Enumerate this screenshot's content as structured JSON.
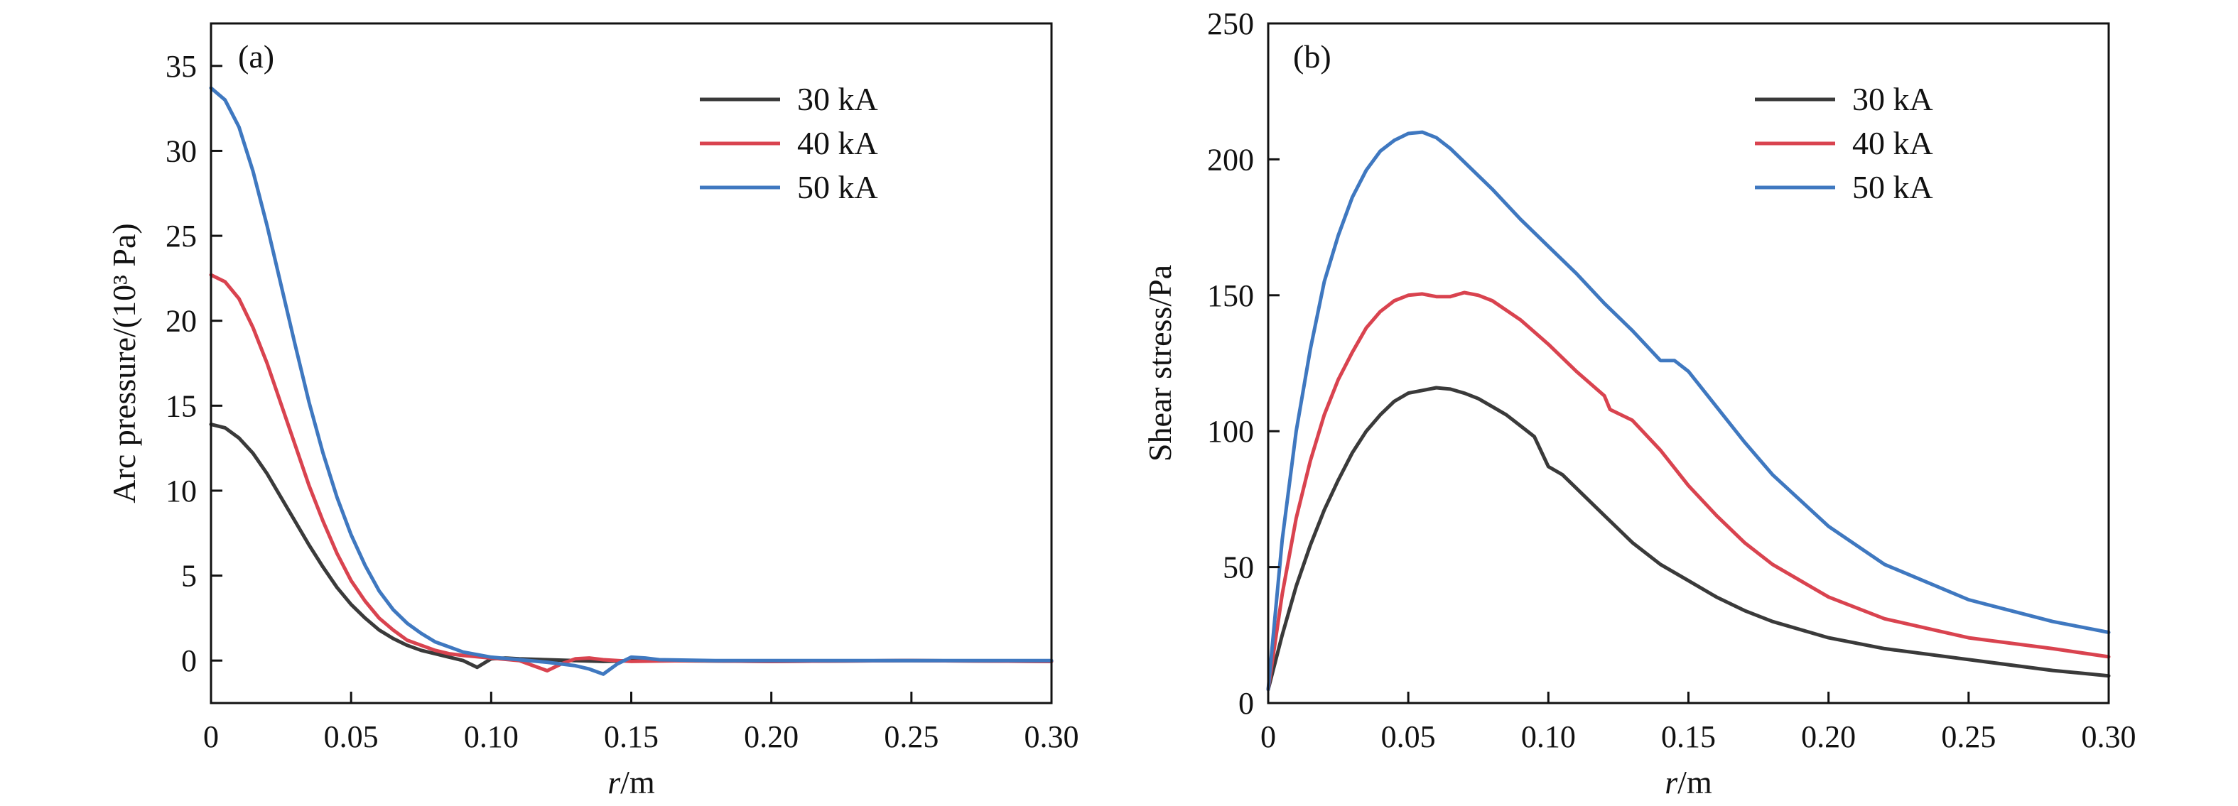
{
  "chart_data": [
    {
      "type": "line",
      "panel_label": "(a)",
      "xlabel_var": "r",
      "xlabel_unit": "/m",
      "ylabel": "Arc pressure/(10³ Pa)",
      "xlim": [
        0,
        0.3
      ],
      "ylim": [
        -2.5,
        37.5
      ],
      "xticks": [
        0,
        0.05,
        0.1,
        0.15,
        0.2,
        0.25,
        0.3
      ],
      "xtick_labels": [
        "0",
        "0.05",
        "0.10",
        "0.15",
        "0.20",
        "0.25",
        "0.30"
      ],
      "yticks": [
        0,
        5,
        10,
        15,
        20,
        25,
        30,
        35
      ],
      "ytick_labels": [
        "0",
        "5",
        "10",
        "15",
        "20",
        "25",
        "30",
        "35"
      ],
      "grid": false,
      "legend_position": "top-right",
      "series": [
        {
          "name": "30 kA",
          "color": "#3a3a3a",
          "points": [
            [
              0,
              13.9
            ],
            [
              0.005,
              13.7
            ],
            [
              0.01,
              13.1
            ],
            [
              0.015,
              12.2
            ],
            [
              0.02,
              11.0
            ],
            [
              0.025,
              9.6
            ],
            [
              0.03,
              8.2
            ],
            [
              0.035,
              6.8
            ],
            [
              0.04,
              5.5
            ],
            [
              0.045,
              4.3
            ],
            [
              0.05,
              3.3
            ],
            [
              0.055,
              2.5
            ],
            [
              0.06,
              1.8
            ],
            [
              0.065,
              1.3
            ],
            [
              0.07,
              0.9
            ],
            [
              0.075,
              0.6
            ],
            [
              0.08,
              0.4
            ],
            [
              0.085,
              0.2
            ],
            [
              0.09,
              0.0
            ],
            [
              0.095,
              -0.4
            ],
            [
              0.1,
              0.1
            ],
            [
              0.105,
              0.15
            ],
            [
              0.11,
              0.1
            ],
            [
              0.12,
              0.05
            ],
            [
              0.13,
              0.0
            ],
            [
              0.14,
              -0.05
            ],
            [
              0.15,
              0.0
            ],
            [
              0.16,
              0.0
            ],
            [
              0.2,
              -0.05
            ],
            [
              0.25,
              0.0
            ],
            [
              0.3,
              -0.05
            ]
          ]
        },
        {
          "name": "40 kA",
          "color": "#d9434f",
          "points": [
            [
              0,
              22.7
            ],
            [
              0.005,
              22.3
            ],
            [
              0.01,
              21.3
            ],
            [
              0.015,
              19.6
            ],
            [
              0.02,
              17.5
            ],
            [
              0.025,
              15.1
            ],
            [
              0.03,
              12.7
            ],
            [
              0.035,
              10.3
            ],
            [
              0.04,
              8.2
            ],
            [
              0.045,
              6.3
            ],
            [
              0.05,
              4.7
            ],
            [
              0.055,
              3.5
            ],
            [
              0.06,
              2.5
            ],
            [
              0.065,
              1.8
            ],
            [
              0.07,
              1.2
            ],
            [
              0.075,
              0.9
            ],
            [
              0.08,
              0.6
            ],
            [
              0.085,
              0.4
            ],
            [
              0.09,
              0.3
            ],
            [
              0.1,
              0.15
            ],
            [
              0.11,
              0.0
            ],
            [
              0.115,
              -0.3
            ],
            [
              0.12,
              -0.6
            ],
            [
              0.125,
              -0.2
            ],
            [
              0.13,
              0.1
            ],
            [
              0.135,
              0.15
            ],
            [
              0.14,
              0.05
            ],
            [
              0.15,
              -0.05
            ],
            [
              0.17,
              0.0
            ],
            [
              0.2,
              -0.05
            ],
            [
              0.25,
              0.0
            ],
            [
              0.3,
              -0.05
            ]
          ]
        },
        {
          "name": "50 kA",
          "color": "#3f78c0",
          "points": [
            [
              0,
              33.7
            ],
            [
              0.005,
              33.0
            ],
            [
              0.01,
              31.4
            ],
            [
              0.015,
              28.8
            ],
            [
              0.02,
              25.6
            ],
            [
              0.025,
              22.1
            ],
            [
              0.03,
              18.6
            ],
            [
              0.035,
              15.2
            ],
            [
              0.04,
              12.2
            ],
            [
              0.045,
              9.6
            ],
            [
              0.05,
              7.4
            ],
            [
              0.055,
              5.6
            ],
            [
              0.06,
              4.1
            ],
            [
              0.065,
              3.0
            ],
            [
              0.07,
              2.2
            ],
            [
              0.075,
              1.6
            ],
            [
              0.08,
              1.1
            ],
            [
              0.085,
              0.8
            ],
            [
              0.09,
              0.5
            ],
            [
              0.1,
              0.2
            ],
            [
              0.11,
              0.05
            ],
            [
              0.12,
              -0.1
            ],
            [
              0.13,
              -0.3
            ],
            [
              0.135,
              -0.5
            ],
            [
              0.14,
              -0.8
            ],
            [
              0.145,
              -0.2
            ],
            [
              0.15,
              0.2
            ],
            [
              0.155,
              0.15
            ],
            [
              0.16,
              0.05
            ],
            [
              0.18,
              0.0
            ],
            [
              0.2,
              0.0
            ],
            [
              0.25,
              0.0
            ],
            [
              0.3,
              0.0
            ]
          ]
        }
      ]
    },
    {
      "type": "line",
      "panel_label": "(b)",
      "xlabel_var": "r",
      "xlabel_unit": "/m",
      "ylabel": "Shear stress/Pa",
      "xlim": [
        0,
        0.3
      ],
      "ylim": [
        0,
        250
      ],
      "xticks": [
        0,
        0.05,
        0.1,
        0.15,
        0.2,
        0.25,
        0.3
      ],
      "xtick_labels": [
        "0",
        "0.05",
        "0.10",
        "0.15",
        "0.20",
        "0.25",
        "0.30"
      ],
      "yticks": [
        0,
        50,
        100,
        150,
        200,
        250
      ],
      "ytick_labels": [
        "0",
        "50",
        "100",
        "150",
        "200",
        "250"
      ],
      "grid": false,
      "legend_position": "top-right",
      "series": [
        {
          "name": "30 kA",
          "color": "#3a3a3a",
          "points": [
            [
              0,
              5
            ],
            [
              0.005,
              25
            ],
            [
              0.01,
              43
            ],
            [
              0.015,
              58
            ],
            [
              0.02,
              71
            ],
            [
              0.025,
              82
            ],
            [
              0.03,
              92
            ],
            [
              0.035,
              100
            ],
            [
              0.04,
              106
            ],
            [
              0.045,
              111
            ],
            [
              0.05,
              114
            ],
            [
              0.055,
              115
            ],
            [
              0.06,
              116
            ],
            [
              0.065,
              115.5
            ],
            [
              0.07,
              114
            ],
            [
              0.075,
              112
            ],
            [
              0.08,
              109
            ],
            [
              0.085,
              106
            ],
            [
              0.09,
              102
            ],
            [
              0.095,
              98
            ],
            [
              0.1,
              87
            ],
            [
              0.105,
              84
            ],
            [
              0.11,
              79
            ],
            [
              0.12,
              69
            ],
            [
              0.13,
              59
            ],
            [
              0.14,
              51
            ],
            [
              0.15,
              45
            ],
            [
              0.16,
              39
            ],
            [
              0.17,
              34
            ],
            [
              0.18,
              30
            ],
            [
              0.2,
              24
            ],
            [
              0.22,
              20
            ],
            [
              0.25,
              16
            ],
            [
              0.28,
              12
            ],
            [
              0.3,
              10
            ]
          ]
        },
        {
          "name": "40 kA",
          "color": "#d9434f",
          "points": [
            [
              0,
              5
            ],
            [
              0.005,
              40
            ],
            [
              0.01,
              68
            ],
            [
              0.015,
              89
            ],
            [
              0.02,
              106
            ],
            [
              0.025,
              119
            ],
            [
              0.03,
              129
            ],
            [
              0.035,
              138
            ],
            [
              0.04,
              144
            ],
            [
              0.045,
              148
            ],
            [
              0.05,
              150
            ],
            [
              0.055,
              150.5
            ],
            [
              0.06,
              149.5
            ],
            [
              0.065,
              149.5
            ],
            [
              0.07,
              151
            ],
            [
              0.075,
              150
            ],
            [
              0.08,
              148
            ],
            [
              0.09,
              141
            ],
            [
              0.1,
              132
            ],
            [
              0.11,
              122
            ],
            [
              0.12,
              113
            ],
            [
              0.122,
              108
            ],
            [
              0.13,
              104
            ],
            [
              0.14,
              93
            ],
            [
              0.15,
              80
            ],
            [
              0.16,
              69
            ],
            [
              0.17,
              59
            ],
            [
              0.18,
              51
            ],
            [
              0.2,
              39
            ],
            [
              0.22,
              31
            ],
            [
              0.25,
              24
            ],
            [
              0.28,
              20
            ],
            [
              0.3,
              17
            ]
          ]
        },
        {
          "name": "50 kA",
          "color": "#3f78c0",
          "points": [
            [
              0,
              5
            ],
            [
              0.005,
              60
            ],
            [
              0.01,
              100
            ],
            [
              0.015,
              130
            ],
            [
              0.02,
              155
            ],
            [
              0.025,
              172
            ],
            [
              0.03,
              186
            ],
            [
              0.035,
              196
            ],
            [
              0.04,
              203
            ],
            [
              0.045,
              207
            ],
            [
              0.05,
              209.5
            ],
            [
              0.055,
              210
            ],
            [
              0.06,
              208
            ],
            [
              0.065,
              204
            ],
            [
              0.07,
              199
            ],
            [
              0.08,
              189
            ],
            [
              0.09,
              178
            ],
            [
              0.1,
              168
            ],
            [
              0.11,
              158
            ],
            [
              0.12,
              147
            ],
            [
              0.13,
              137
            ],
            [
              0.14,
              126
            ],
            [
              0.145,
              126
            ],
            [
              0.15,
              122
            ],
            [
              0.16,
              109
            ],
            [
              0.17,
              96
            ],
            [
              0.18,
              84
            ],
            [
              0.2,
              65
            ],
            [
              0.22,
              51
            ],
            [
              0.25,
              38
            ],
            [
              0.28,
              30
            ],
            [
              0.3,
              26
            ]
          ]
        }
      ]
    }
  ]
}
